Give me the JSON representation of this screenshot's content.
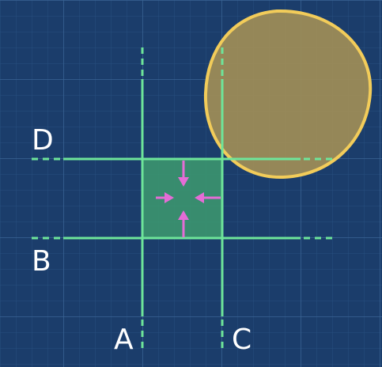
{
  "diagram": {
    "labels": {
      "a": "A",
      "b": "B",
      "c": "C",
      "d": "D"
    },
    "colors": {
      "background": "#1b3d6b",
      "grid": "#2c5585",
      "line": "#6ee59a",
      "square_fill": "#3d9a6f",
      "arrow": "#e56cd6",
      "circle_fill": "#a08d57",
      "circle_stroke": "#f2cc5a"
    },
    "icons": [
      "arrow-down-icon",
      "arrow-right-icon",
      "arrow-left-icon",
      "arrow-up-icon"
    ]
  }
}
